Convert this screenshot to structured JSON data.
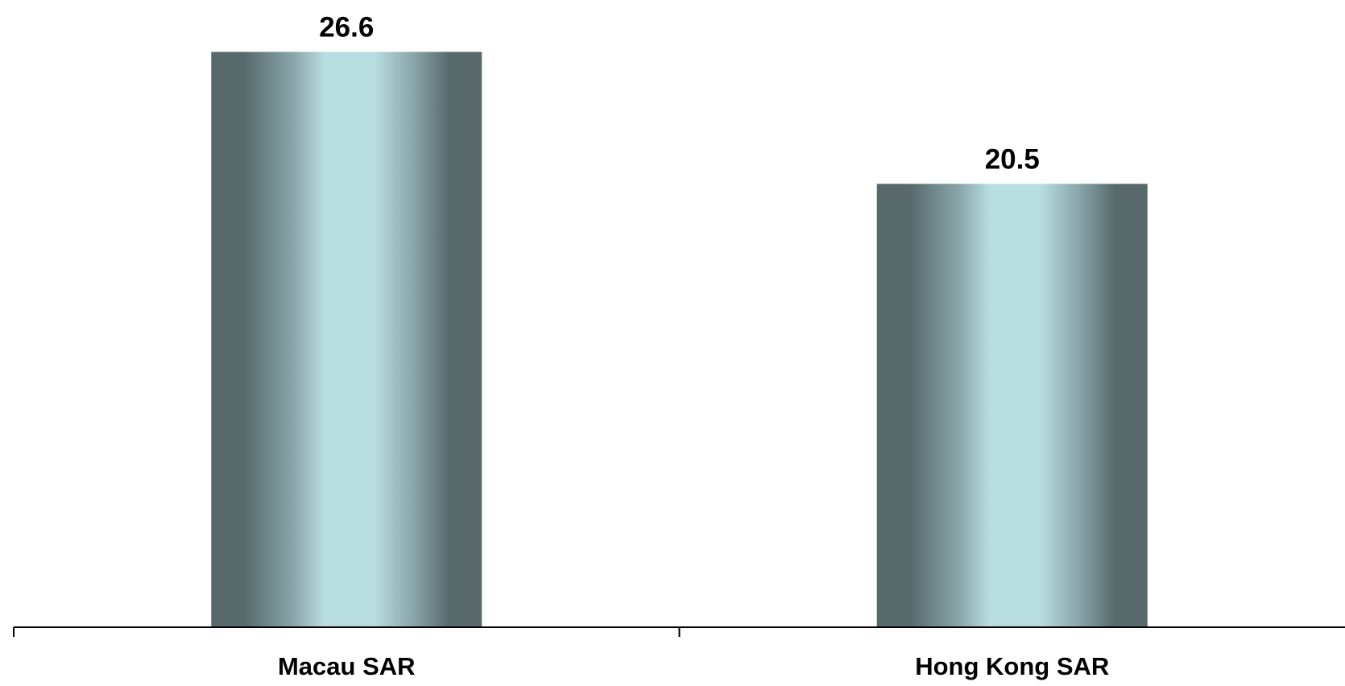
{
  "chart_data": {
    "type": "bar",
    "categories": [
      "Macau SAR",
      "Hong Kong SAR"
    ],
    "values": [
      26.6,
      20.5
    ],
    "value_labels": [
      "26.6",
      "20.5"
    ],
    "title": "",
    "xlabel": "",
    "ylabel": "",
    "ylim": [
      0,
      29
    ],
    "grid": false,
    "legend": "none",
    "y_axis_visible": false
  },
  "colors": {
    "bar_edge": "#58696c",
    "bar_mid": "#88a4a8",
    "bar_center": "#b9dee2",
    "axis": "#000000",
    "text": "#000000"
  }
}
